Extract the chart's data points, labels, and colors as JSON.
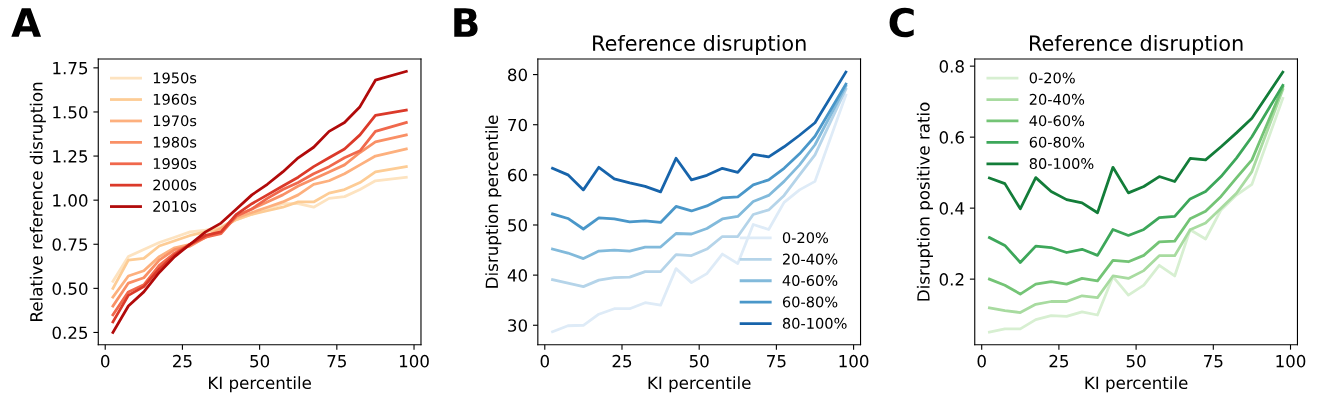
{
  "chart_data": [
    {
      "type": "line",
      "annotations": [
        "A"
      ],
      "xlabel": "KI percentile",
      "ylabel": "Relative reference disruption",
      "legend": "top left",
      "x": [
        2.5,
        7.5,
        12.5,
        17.5,
        22.5,
        27.5,
        32.5,
        37.5,
        42.5,
        47.5,
        52.5,
        57.5,
        62.5,
        67.5,
        72.5,
        77.5,
        82.5,
        87.5,
        97.5
      ],
      "xlim": [
        -2.25,
        102.25
      ],
      "xticks": [
        0,
        25,
        50,
        75,
        100
      ],
      "ylim": [
        0.18,
        1.8
      ],
      "yticks": [
        {
          "value": 0.25,
          "label": "0.25"
        },
        {
          "value": 0.5,
          "label": "0.50"
        },
        {
          "value": 0.75,
          "label": "0.75"
        },
        {
          "value": 1.0,
          "label": "1.00"
        },
        {
          "value": 1.25,
          "label": "1.25"
        },
        {
          "value": 1.5,
          "label": "1.50"
        },
        {
          "value": 1.75,
          "label": "1.75"
        }
      ],
      "series": [
        {
          "name": "1950s",
          "color": "#fde3c0",
          "values": [
            0.54,
            0.68,
            0.72,
            0.76,
            0.79,
            0.82,
            0.83,
            0.85,
            0.89,
            0.92,
            0.95,
            0.98,
            0.98,
            0.96,
            1.01,
            1.02,
            1.06,
            1.11,
            1.13
          ]
        },
        {
          "name": "1960s",
          "color": "#fdcc95",
          "values": [
            0.5,
            0.66,
            0.67,
            0.74,
            0.77,
            0.8,
            0.82,
            0.84,
            0.89,
            0.92,
            0.94,
            0.96,
            0.99,
            0.99,
            1.04,
            1.06,
            1.1,
            1.16,
            1.19
          ]
        },
        {
          "name": "1970s",
          "color": "#fdb07e",
          "values": [
            0.45,
            0.57,
            0.6,
            0.68,
            0.73,
            0.75,
            0.79,
            0.84,
            0.9,
            0.93,
            0.96,
            0.99,
            1.03,
            1.09,
            1.11,
            1.15,
            1.2,
            1.25,
            1.29
          ]
        },
        {
          "name": "1980s",
          "color": "#f99066",
          "values": [
            0.4,
            0.53,
            0.56,
            0.66,
            0.72,
            0.74,
            0.79,
            0.82,
            0.91,
            0.95,
            0.99,
            1.03,
            1.08,
            1.12,
            1.16,
            1.2,
            1.27,
            1.33,
            1.37
          ]
        },
        {
          "name": "1990s",
          "color": "#f0684c",
          "values": [
            0.35,
            0.48,
            0.52,
            0.63,
            0.7,
            0.75,
            0.79,
            0.81,
            0.91,
            0.95,
            1.01,
            1.06,
            1.1,
            1.15,
            1.19,
            1.24,
            1.28,
            1.39,
            1.44
          ]
        },
        {
          "name": "2000s",
          "color": "#db3a2a",
          "values": [
            0.31,
            0.46,
            0.51,
            0.61,
            0.69,
            0.75,
            0.8,
            0.82,
            0.92,
            0.98,
            1.03,
            1.08,
            1.13,
            1.19,
            1.24,
            1.29,
            1.37,
            1.48,
            1.51
          ]
        },
        {
          "name": "2010s",
          "color": "#b10a0a",
          "values": [
            0.25,
            0.4,
            0.48,
            0.59,
            0.68,
            0.75,
            0.82,
            0.87,
            0.95,
            1.03,
            1.09,
            1.16,
            1.24,
            1.3,
            1.39,
            1.44,
            1.53,
            1.68,
            1.73
          ]
        }
      ]
    },
    {
      "type": "line",
      "annotations": [
        "B"
      ],
      "title": "Reference disruption",
      "xlabel": "KI percentile",
      "ylabel": "Disruption percentile",
      "legend": "bottom right",
      "x": [
        2.5,
        7.5,
        12.5,
        17.5,
        22.5,
        27.5,
        32.5,
        37.5,
        42.5,
        47.5,
        52.5,
        57.5,
        62.5,
        67.5,
        72.5,
        77.5,
        82.5,
        87.5,
        97.5
      ],
      "xlim": [
        -2.25,
        102.25
      ],
      "xticks": [
        0,
        25,
        50,
        75,
        100
      ],
      "ylim": [
        26.1,
        83.1
      ],
      "yticks": [
        30,
        40,
        50,
        60,
        70,
        80
      ],
      "series": [
        {
          "name": "0-20%",
          "color": "#deebf7",
          "values": [
            28.7,
            29.9,
            30.0,
            32.2,
            33.3,
            33.3,
            34.5,
            34.0,
            41.3,
            38.5,
            40.3,
            44.2,
            42.3,
            50.1,
            49.1,
            54.5,
            57.0,
            58.7,
            75.9
          ]
        },
        {
          "name": "20-40%",
          "color": "#b5d4e9",
          "values": [
            39.1,
            38.4,
            37.7,
            39.0,
            39.5,
            39.6,
            40.7,
            40.7,
            44.1,
            43.9,
            45.2,
            47.7,
            47.7,
            52.1,
            53.0,
            55.9,
            60.0,
            64.0,
            77.1
          ]
        },
        {
          "name": "40-60%",
          "color": "#82badb",
          "values": [
            45.2,
            44.4,
            43.3,
            44.8,
            45.0,
            44.8,
            45.6,
            45.6,
            48.3,
            48.2,
            49.3,
            51.2,
            51.7,
            54.7,
            55.9,
            58.7,
            62.0,
            66.0,
            77.7
          ]
        },
        {
          "name": "60-80%",
          "color": "#4a97c9",
          "values": [
            52.2,
            51.3,
            49.2,
            51.4,
            51.2,
            50.6,
            50.8,
            50.5,
            53.7,
            52.8,
            53.8,
            55.4,
            55.6,
            58.0,
            59.0,
            61.3,
            64.2,
            67.7,
            78.1
          ]
        },
        {
          "name": "80-100%",
          "color": "#1764ab",
          "values": [
            61.3,
            60.0,
            57.0,
            61.5,
            59.2,
            58.4,
            57.7,
            56.6,
            63.3,
            59.0,
            59.9,
            61.3,
            60.5,
            64.1,
            63.6,
            65.6,
            67.9,
            70.4,
            80.5
          ]
        }
      ]
    },
    {
      "type": "line",
      "annotations": [
        "C"
      ],
      "title": "Reference disruption",
      "xlabel": "KI percentile",
      "ylabel": "Disruption positive ratio",
      "legend": "top left",
      "x": [
        2.5,
        7.5,
        12.5,
        17.5,
        22.5,
        27.5,
        32.5,
        37.5,
        42.5,
        47.5,
        52.5,
        57.5,
        62.5,
        67.5,
        72.5,
        77.5,
        82.5,
        87.5,
        97.5
      ],
      "xlim": [
        -2.25,
        102.25
      ],
      "xticks": [
        0,
        25,
        50,
        75,
        100
      ],
      "ylim": [
        0.015,
        0.82
      ],
      "yticks": [
        0.2,
        0.4,
        0.6,
        0.8
      ],
      "series": [
        {
          "name": "0-20%",
          "color": "#d7efd1",
          "values": [
            0.051,
            0.06,
            0.06,
            0.086,
            0.097,
            0.095,
            0.108,
            0.099,
            0.207,
            0.155,
            0.183,
            0.239,
            0.209,
            0.339,
            0.313,
            0.395,
            0.437,
            0.467,
            0.709
          ]
        },
        {
          "name": "20-40%",
          "color": "#a8dba0",
          "values": [
            0.119,
            0.111,
            0.106,
            0.129,
            0.137,
            0.137,
            0.153,
            0.148,
            0.209,
            0.202,
            0.224,
            0.266,
            0.266,
            0.339,
            0.358,
            0.4,
            0.442,
            0.503,
            0.734
          ]
        },
        {
          "name": "40-60%",
          "color": "#74c476",
          "values": [
            0.2,
            0.183,
            0.158,
            0.186,
            0.193,
            0.186,
            0.202,
            0.195,
            0.253,
            0.249,
            0.267,
            0.305,
            0.307,
            0.37,
            0.391,
            0.433,
            0.485,
            0.536,
            0.741
          ]
        },
        {
          "name": "60-80%",
          "color": "#3da75a",
          "values": [
            0.317,
            0.295,
            0.247,
            0.293,
            0.289,
            0.275,
            0.284,
            0.267,
            0.34,
            0.323,
            0.34,
            0.373,
            0.377,
            0.426,
            0.447,
            0.489,
            0.541,
            0.601,
            0.746
          ]
        },
        {
          "name": "80-100%",
          "color": "#137d39",
          "values": [
            0.485,
            0.469,
            0.398,
            0.486,
            0.447,
            0.424,
            0.415,
            0.387,
            0.515,
            0.443,
            0.461,
            0.489,
            0.475,
            0.54,
            0.536,
            0.573,
            0.612,
            0.653,
            0.783
          ]
        }
      ]
    }
  ]
}
